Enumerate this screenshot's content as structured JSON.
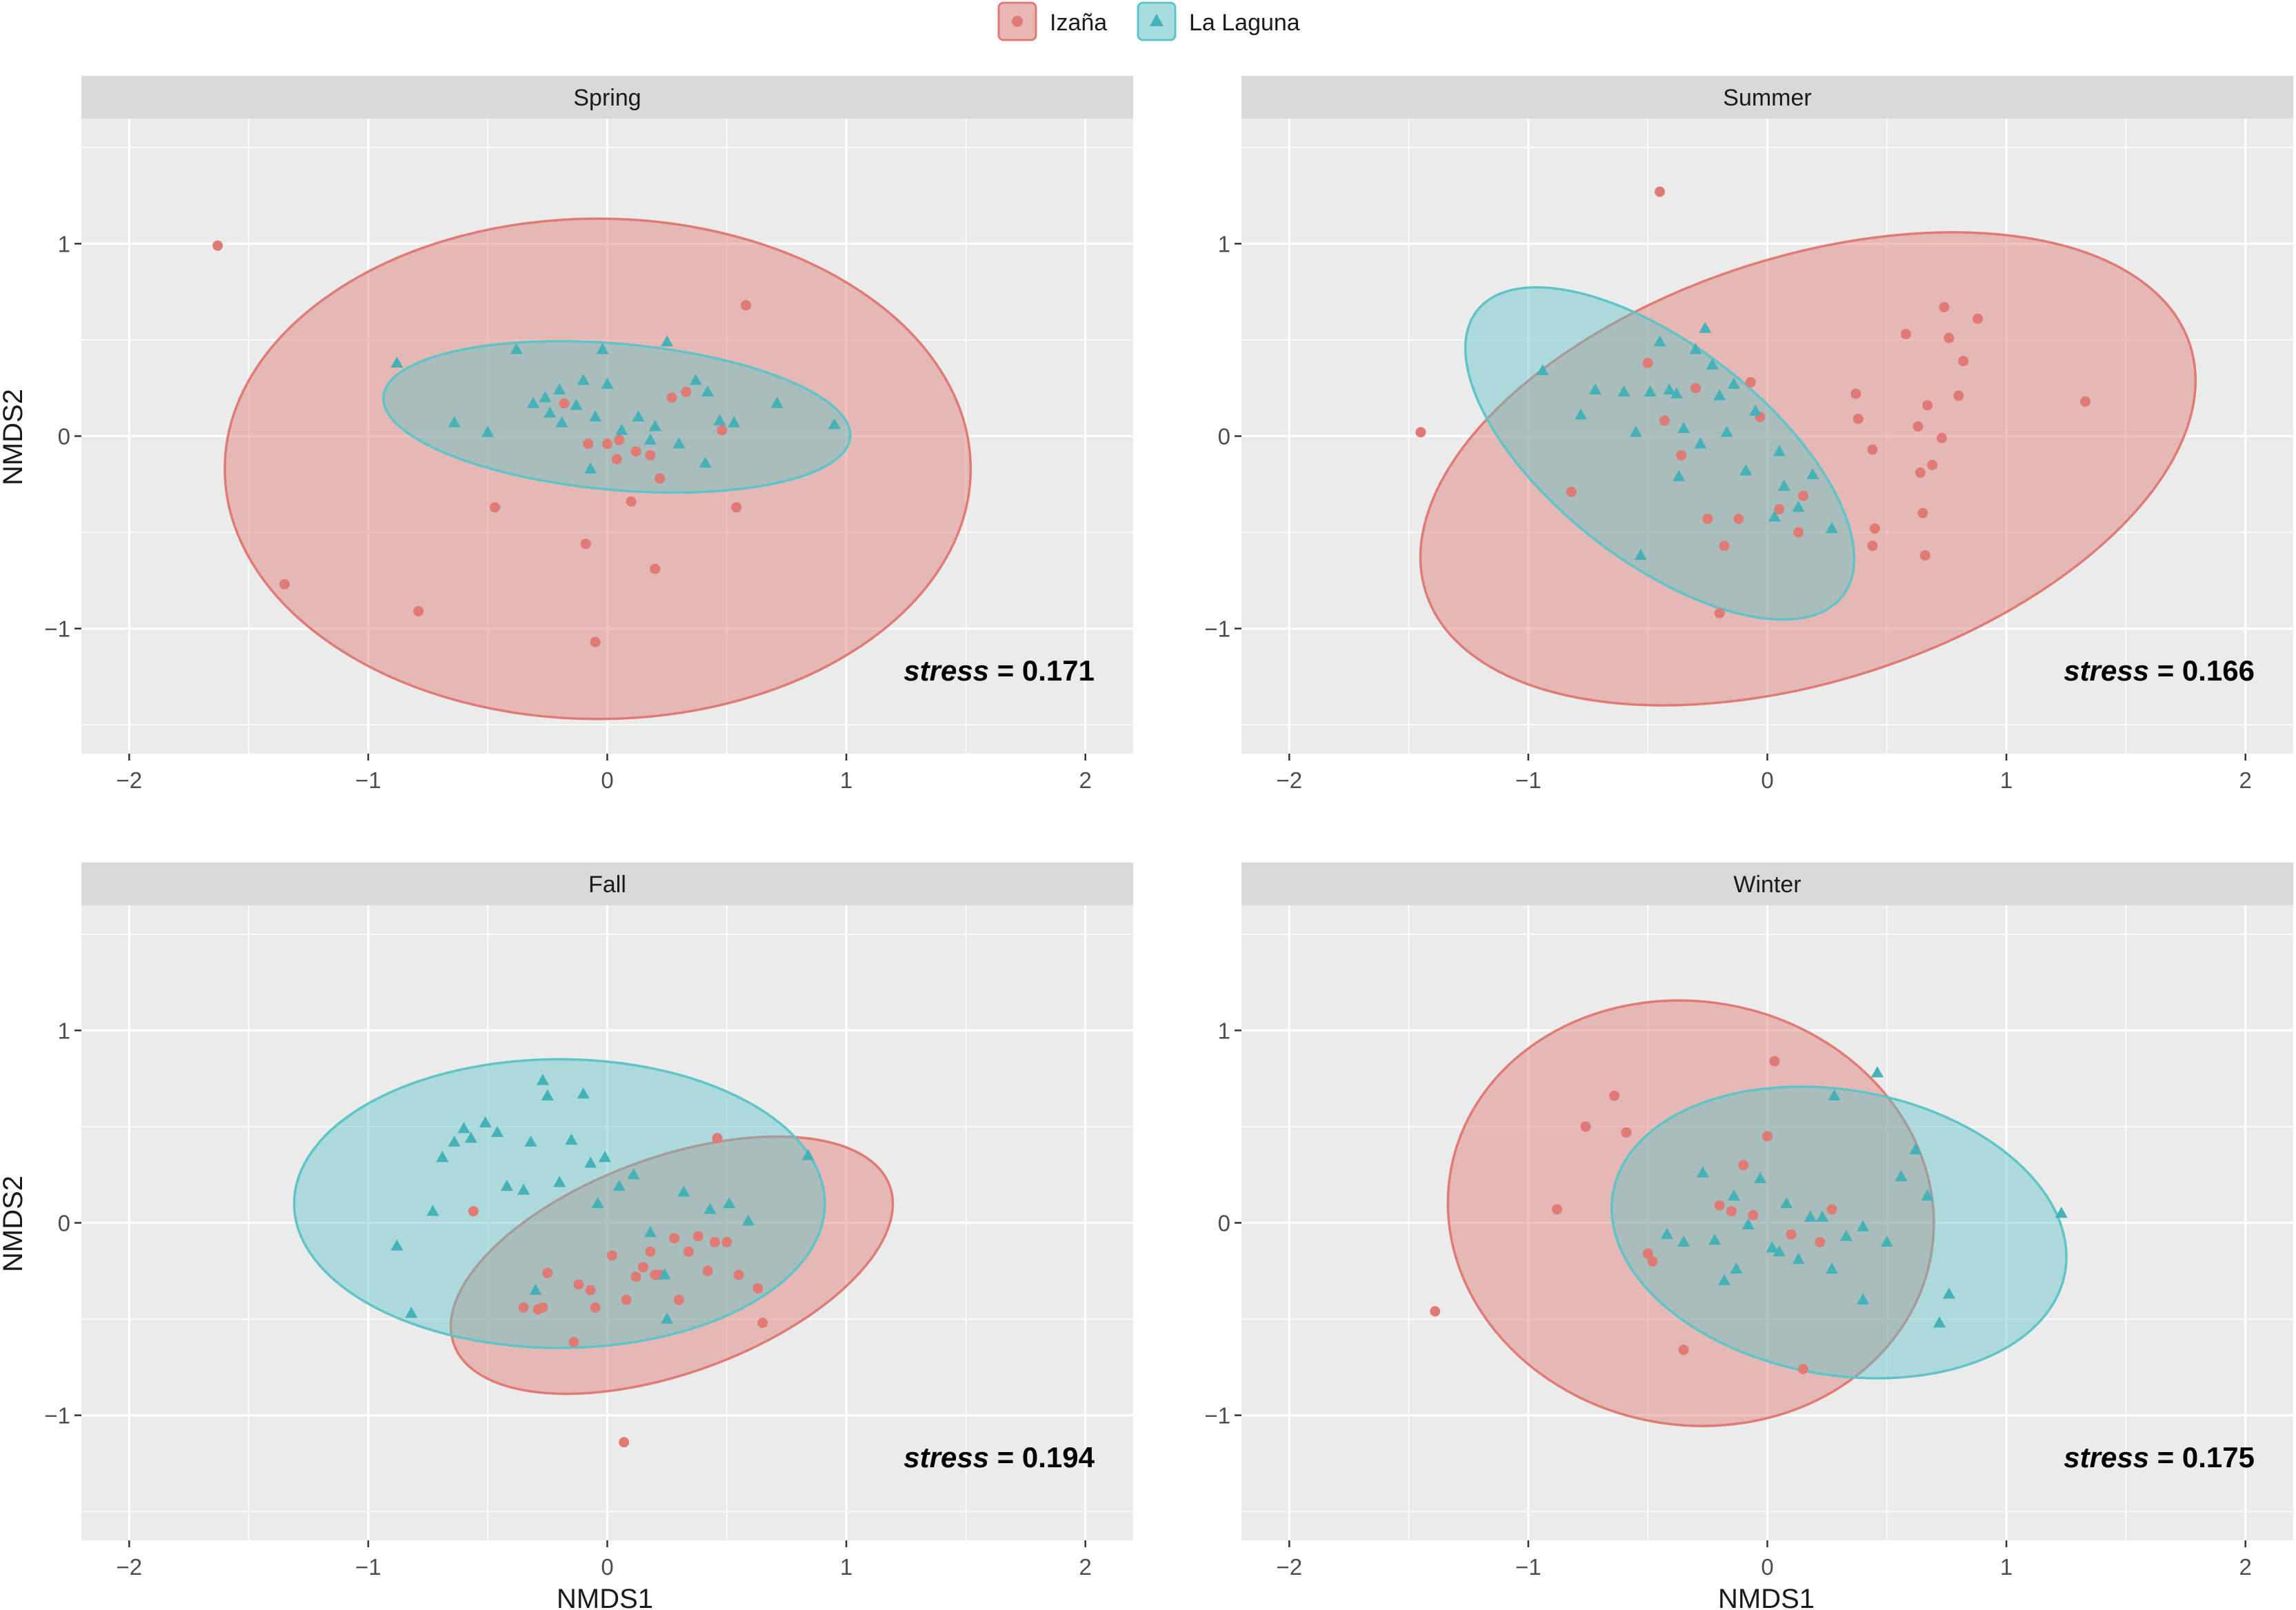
{
  "legend": {
    "items": [
      {
        "label": "Izaña",
        "color": "#E07A74",
        "shape": "circle"
      },
      {
        "label": "La Laguna",
        "color": "#5FC4C8",
        "shape": "triangle"
      }
    ]
  },
  "axes": {
    "xlabel": "NMDS1",
    "ylabel": "NMDS2",
    "xlim": [
      -2.2,
      2.2
    ],
    "ylim": [
      -1.65,
      1.65
    ],
    "xticks": [
      -2,
      -1,
      0,
      1,
      2
    ],
    "yticks": [
      -1,
      0,
      1
    ],
    "xtick_labels": [
      "−2",
      "−1",
      "0",
      "1",
      "2"
    ],
    "ytick_labels": [
      "−1",
      "0",
      "1"
    ]
  },
  "colors": {
    "izana": "#E07A74",
    "laguna": "#5FC4C8",
    "panel_bg": "#EBEBEB",
    "strip_bg": "#D9D9D9",
    "grid": "#FFFFFF"
  },
  "stress_label": "stress",
  "chart_data": [
    {
      "type": "scatter",
      "title": "Spring",
      "stress": "= 0.171",
      "ellipses": [
        {
          "group": "Izaña",
          "cx": -0.04,
          "cy": -0.17,
          "rx": 1.56,
          "ry": 1.3,
          "angle": 0
        },
        {
          "group": "La Laguna",
          "cx": 0.04,
          "cy": 0.1,
          "rx": 0.98,
          "ry": 0.38,
          "angle": -5
        }
      ],
      "series": [
        {
          "name": "Izaña",
          "x": [
            -1.63,
            -1.35,
            -0.79,
            -0.47,
            -0.09,
            -0.05,
            0.2,
            0.58,
            0.54,
            -0.18,
            -0.08,
            0,
            0.05,
            0.12,
            0.18,
            0.27,
            0.33,
            0.48,
            0.22,
            0.1,
            0.04
          ],
          "y": [
            0.99,
            -0.77,
            -0.91,
            -0.37,
            -0.56,
            -1.07,
            -0.69,
            0.68,
            -0.37,
            0.17,
            -0.04,
            -0.04,
            -0.02,
            -0.08,
            -0.1,
            0.2,
            0.23,
            0.03,
            -0.22,
            -0.34,
            -0.12
          ]
        },
        {
          "name": "La Laguna",
          "x": [
            -0.88,
            -0.64,
            -0.5,
            -0.38,
            -0.31,
            -0.26,
            -0.2,
            -0.13,
            -0.1,
            -0.05,
            -0.02,
            0,
            0.06,
            0.13,
            0.2,
            0.3,
            0.37,
            0.41,
            0.47,
            0.53,
            0.71,
            0.95,
            -0.24,
            -0.07,
            0.18,
            0.42,
            -0.19,
            0.25
          ],
          "y": [
            0.38,
            0.07,
            0.02,
            0.45,
            0.17,
            0.2,
            0.24,
            0.16,
            0.29,
            0.1,
            0.45,
            0.27,
            0.03,
            0.1,
            0.05,
            -0.04,
            0.29,
            -0.14,
            0.08,
            0.07,
            0.17,
            0.06,
            0.12,
            -0.17,
            -0.02,
            0.23,
            0.07,
            0.49
          ]
        }
      ]
    },
    {
      "type": "scatter",
      "title": "Summer",
      "stress": "= 0.166",
      "ellipses": [
        {
          "group": "Izaña",
          "cx": 0.17,
          "cy": -0.17,
          "rx": 1.68,
          "ry": 1.1,
          "angle": 18
        },
        {
          "group": "La Laguna",
          "cx": -0.45,
          "cy": -0.09,
          "rx": 0.97,
          "ry": 0.56,
          "angle": -38
        }
      ],
      "series": [
        {
          "name": "Izaña",
          "x": [
            -1.45,
            -0.45,
            -0.2,
            0.37,
            0.38,
            0.44,
            0.44,
            0.58,
            0.63,
            0.64,
            0.67,
            0.69,
            0.73,
            0.74,
            0.76,
            0.8,
            0.82,
            0.88,
            0.65,
            0.66,
            0.45,
            1.33,
            -0.82,
            -0.5,
            -0.43,
            -0.36,
            -0.3,
            -0.25,
            -0.18,
            -0.12,
            -0.07,
            -0.03,
            0.05,
            0.13,
            0.15
          ],
          "y": [
            0.02,
            1.27,
            -0.92,
            0.22,
            0.09,
            -0.07,
            -0.57,
            0.53,
            0.05,
            -0.19,
            0.16,
            -0.15,
            -0.01,
            0.67,
            0.51,
            0.21,
            0.39,
            0.61,
            -0.4,
            -0.62,
            -0.48,
            0.18,
            -0.29,
            0.38,
            0.08,
            -0.1,
            0.25,
            -0.43,
            -0.57,
            -0.43,
            0.28,
            0.1,
            -0.38,
            -0.5,
            -0.31
          ]
        },
        {
          "name": "La Laguna",
          "x": [
            -0.94,
            -0.78,
            -0.72,
            -0.6,
            -0.55,
            -0.49,
            -0.45,
            -0.41,
            -0.35,
            -0.3,
            -0.26,
            -0.23,
            -0.2,
            -0.14,
            -0.09,
            -0.05,
            0.03,
            0.07,
            0.13,
            0.19,
            0.27,
            -0.53,
            -0.37,
            -0.17,
            -0.28,
            -0.38,
            0.05
          ],
          "y": [
            0.34,
            0.11,
            0.24,
            0.23,
            0.02,
            0.23,
            0.49,
            0.24,
            0.04,
            0.45,
            0.56,
            0.37,
            0.21,
            0.27,
            -0.18,
            0.13,
            -0.42,
            -0.26,
            -0.37,
            -0.2,
            -0.48,
            -0.62,
            -0.21,
            0.02,
            -0.04,
            0.22,
            -0.08
          ]
        }
      ]
    },
    {
      "type": "scatter",
      "title": "Fall",
      "stress": "= 0.194",
      "ellipses": [
        {
          "group": "Izaña",
          "cx": 0.27,
          "cy": -0.22,
          "rx": 0.97,
          "ry": 0.56,
          "angle": 20
        },
        {
          "group": "La Laguna",
          "cx": -0.2,
          "cy": 0.1,
          "rx": 1.11,
          "ry": 0.75,
          "angle": 0
        }
      ],
      "series": [
        {
          "name": "Izaña",
          "x": [
            -0.56,
            -0.35,
            -0.29,
            -0.25,
            -0.12,
            -0.05,
            0.02,
            0.08,
            0.12,
            0.15,
            0.18,
            0.22,
            0.28,
            0.34,
            0.38,
            0.42,
            0.46,
            0.5,
            0.55,
            0.63,
            0.65,
            0.45,
            0.07,
            -0.14,
            0.3,
            -0.27,
            -0.07,
            0.2
          ],
          "y": [
            0.06,
            -0.44,
            -0.45,
            -0.26,
            -0.32,
            -0.44,
            -0.17,
            -0.4,
            -0.28,
            -0.23,
            -0.15,
            -0.27,
            -0.08,
            -0.15,
            -0.07,
            -0.25,
            0.44,
            -0.1,
            -0.27,
            -0.34,
            -0.52,
            -0.1,
            -1.14,
            -0.62,
            -0.4,
            -0.44,
            -0.35,
            -0.27
          ]
        },
        {
          "name": "La Laguna",
          "x": [
            -0.88,
            -0.82,
            -0.73,
            -0.69,
            -0.64,
            -0.6,
            -0.57,
            -0.51,
            -0.46,
            -0.42,
            -0.35,
            -0.32,
            -0.27,
            -0.25,
            -0.2,
            -0.15,
            -0.1,
            -0.07,
            -0.04,
            -0.01,
            0.05,
            0.11,
            0.18,
            0.24,
            0.32,
            0.43,
            0.51,
            0.59,
            0.84,
            -0.3,
            0.25
          ],
          "y": [
            -0.12,
            -0.47,
            0.06,
            0.34,
            0.42,
            0.49,
            0.44,
            0.52,
            0.47,
            0.19,
            0.17,
            0.42,
            0.74,
            0.66,
            0.21,
            0.43,
            0.67,
            0.31,
            0.1,
            0.34,
            0.19,
            0.25,
            -0.05,
            -0.27,
            0.16,
            0.07,
            0.1,
            0.01,
            0.35,
            -0.35,
            -0.5
          ]
        }
      ]
    },
    {
      "type": "scatter",
      "title": "Winter",
      "stress": "= 0.175",
      "ellipses": [
        {
          "group": "Izaña",
          "cx": -0.32,
          "cy": 0.05,
          "rx": 1.02,
          "ry": 1.1,
          "angle": -10
        },
        {
          "group": "La Laguna",
          "cx": 0.3,
          "cy": -0.05,
          "rx": 0.96,
          "ry": 0.74,
          "angle": -10
        }
      ],
      "series": [
        {
          "name": "Izaña",
          "x": [
            -1.39,
            -0.88,
            -0.76,
            -0.64,
            -0.59,
            -0.5,
            -0.48,
            -0.35,
            -0.2,
            -0.15,
            -0.1,
            -0.06,
            0,
            0.03,
            0.1,
            0.15,
            0.22,
            0.27
          ],
          "y": [
            -0.46,
            0.07,
            0.5,
            0.66,
            0.47,
            -0.16,
            -0.2,
            -0.66,
            0.09,
            0.06,
            0.3,
            0.04,
            0.45,
            0.84,
            -0.06,
            -0.76,
            -0.1,
            0.07
          ]
        },
        {
          "name": "La Laguna",
          "x": [
            -0.42,
            -0.35,
            -0.27,
            -0.22,
            -0.18,
            -0.13,
            -0.08,
            -0.03,
            0.02,
            0.08,
            0.13,
            0.18,
            0.23,
            0.28,
            0.33,
            0.4,
            0.46,
            0.5,
            0.56,
            0.62,
            0.67,
            0.72,
            0.76,
            1.23,
            0.27,
            0.4,
            -0.14,
            0.05
          ],
          "y": [
            -0.06,
            -0.1,
            0.26,
            -0.09,
            -0.3,
            -0.24,
            -0.01,
            0.23,
            -0.13,
            0.1,
            -0.19,
            0.03,
            0.03,
            0.66,
            -0.07,
            -0.4,
            0.78,
            -0.1,
            0.24,
            0.38,
            0.14,
            -0.52,
            -0.37,
            0.05,
            -0.24,
            -0.02,
            0.14,
            -0.15
          ]
        }
      ]
    }
  ]
}
